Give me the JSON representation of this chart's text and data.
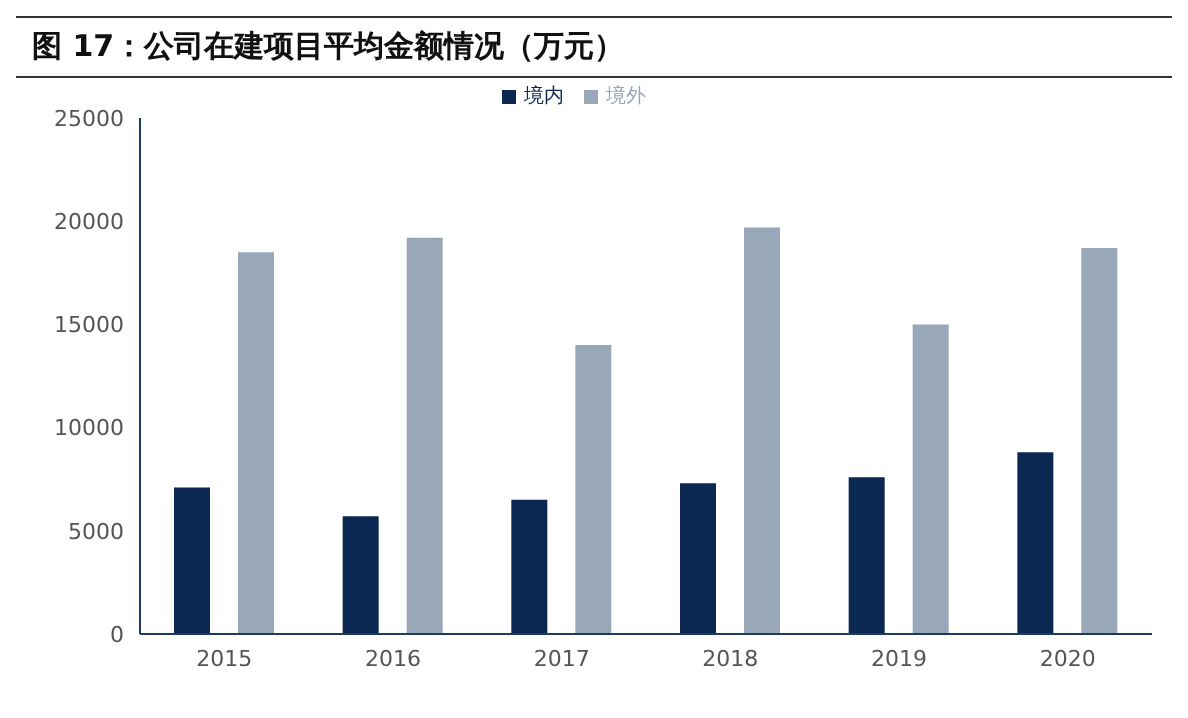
{
  "chart_data": {
    "type": "bar",
    "title": "图 17：公司在建项目平均金额情况（万元）",
    "categories": [
      "2015",
      "2016",
      "2017",
      "2018",
      "2019",
      "2020"
    ],
    "series": [
      {
        "name": "境内",
        "color": "#0b2852",
        "values": [
          7100,
          5700,
          6500,
          7300,
          7600,
          8800
        ]
      },
      {
        "name": "境外",
        "color": "#98a8b8",
        "values": [
          18500,
          19200,
          14000,
          19700,
          15000,
          18700
        ]
      }
    ],
    "ylim": [
      0,
      25000
    ],
    "yticks": [
      0,
      5000,
      10000,
      15000,
      20000,
      25000
    ],
    "grid": false,
    "legend": "top"
  }
}
